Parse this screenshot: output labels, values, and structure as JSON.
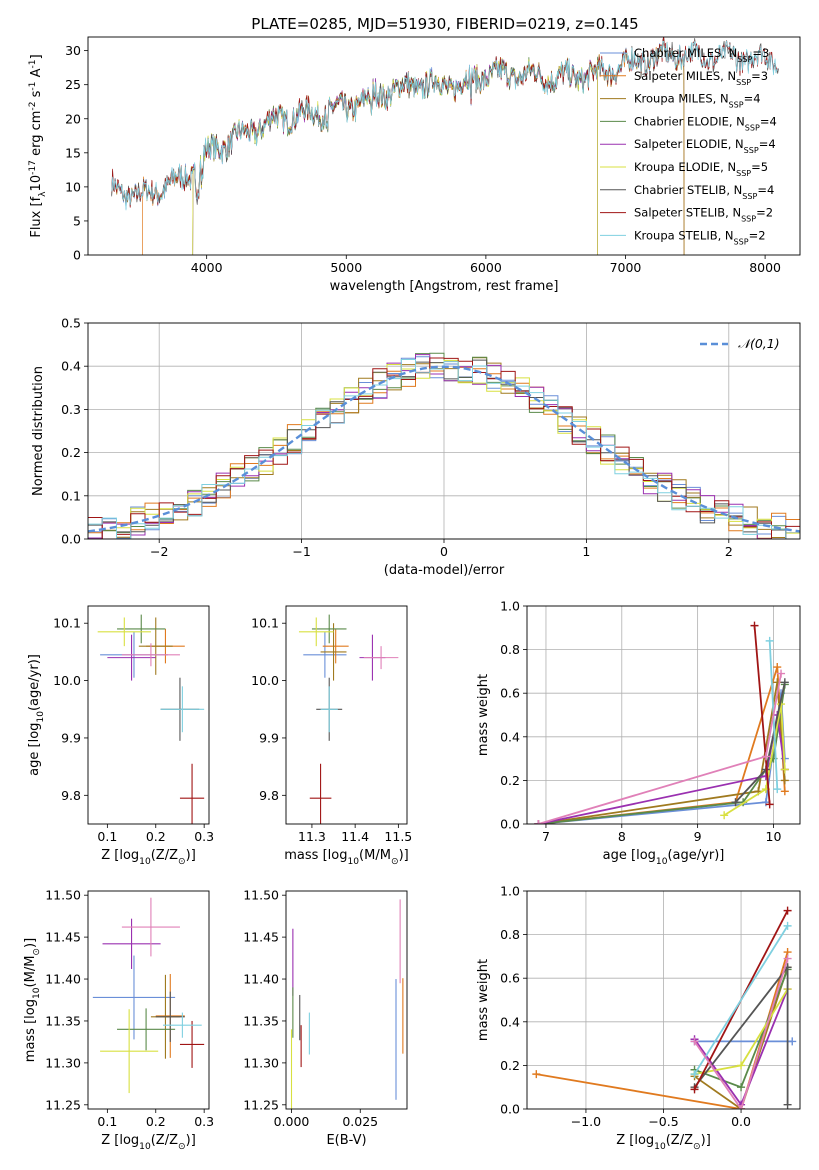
{
  "figure_title": "PLATE=0285, MJD=51930, FIBERID=0219, z=0.145",
  "colors": {
    "Chabrier MILES": "#6a8fd8",
    "Salpeter MILES": "#e07a1f",
    "Kroupa MILES": "#a07a1f",
    "Chabrier ELODIE": "#5a8a4a",
    "Salpeter ELODIE": "#9a30b0",
    "Kroupa ELODIE": "#d8e040",
    "Chabrier STELIB": "#555555",
    "Salpeter STELIB": "#a01515",
    "Kroupa STELIB": "#7fd0e0",
    "extra_pink": "#e080b8",
    "normal": "#5a8fd8"
  },
  "chart_data": [
    {
      "id": "spectrum",
      "type": "line",
      "title": "PLATE=0285, MJD=51930, FIBERID=0219, z=0.145",
      "xlabel": "wavelength [Angstrom, rest frame]",
      "ylabel": "Flux [f$_\\lambda$10$^{-17}$ erg cm$^{-2}$ s$^{-1}$ A$^{-1}$]",
      "xlim": [
        3150,
        8250
      ],
      "ylim": [
        0,
        32
      ],
      "xticks": [
        4000,
        5000,
        6000,
        7000,
        8000
      ],
      "yticks": [
        0,
        5,
        10,
        15,
        20,
        25,
        30
      ],
      "grid": false,
      "legend": "top-right",
      "continuum": [
        [
          3320,
          10
        ],
        [
          3500,
          8.5
        ],
        [
          3700,
          10
        ],
        [
          3900,
          12
        ],
        [
          4000,
          15
        ],
        [
          4200,
          17
        ],
        [
          4500,
          20
        ],
        [
          4800,
          21
        ],
        [
          5000,
          21.5
        ],
        [
          5200,
          23.5
        ],
        [
          5500,
          25
        ],
        [
          5800,
          25
        ],
        [
          6000,
          26.5
        ],
        [
          6300,
          26.5
        ],
        [
          6500,
          26
        ],
        [
          6800,
          26.5
        ],
        [
          7000,
          28
        ],
        [
          7200,
          29
        ],
        [
          7400,
          29.5
        ],
        [
          7700,
          29
        ],
        [
          8000,
          29
        ],
        [
          8100,
          28.5
        ]
      ],
      "series": [
        {
          "name": "Chabrier MILES, N$_{SSP}$=3",
          "xmin": 3320,
          "xmax": 7420
        },
        {
          "name": "Salpeter MILES, N$_{SSP}$=3",
          "xmin": 3540,
          "xmax": 7420
        },
        {
          "name": "Kroupa MILES, N$_{SSP}$=4",
          "xmin": 3320,
          "xmax": 7420
        },
        {
          "name": "Chabrier ELODIE, N$_{SSP}$=4",
          "xmin": 3900,
          "xmax": 6800
        },
        {
          "name": "Salpeter ELODIE, N$_{SSP}$=4",
          "xmin": 3900,
          "xmax": 6800
        },
        {
          "name": "Kroupa ELODIE, N$_{SSP}$=5",
          "xmin": 3900,
          "xmax": 6800
        },
        {
          "name": "Chabrier STELIB, N$_{SSP}$=4",
          "xmin": 3320,
          "xmax": 8100
        },
        {
          "name": "Salpeter STELIB, N$_{SSP}$=2",
          "xmin": 3320,
          "xmax": 8100
        },
        {
          "name": "Kroupa STELIB, N$_{SSP}$=2",
          "xmin": 3320,
          "xmax": 8100
        }
      ]
    },
    {
      "id": "residuals",
      "type": "line",
      "xlabel": "(data-model)/error",
      "ylabel": "Normed distribution",
      "xlim": [
        -2.5,
        2.5
      ],
      "ylim": [
        0,
        0.5
      ],
      "xticks": [
        -2,
        -1,
        0,
        1,
        2
      ],
      "yticks": [
        0.0,
        0.1,
        0.2,
        0.3,
        0.4,
        0.5
      ],
      "grid": true,
      "legend": "top-right",
      "normal_label": "$\\mathcal{N}(0,1)$"
    },
    {
      "id": "age_vs_Z",
      "type": "scatter",
      "xlabel": "Z [log$_{10}$(Z/Z$_\\odot$)]",
      "ylabel": "age  [log$_{10}$(age/yr)]",
      "xlim": [
        0.06,
        0.31
      ],
      "ylim": [
        9.75,
        10.13
      ],
      "xticks": [
        0.1,
        0.2,
        0.3
      ],
      "yticks": [
        9.8,
        9.9,
        10.0,
        10.1
      ],
      "points": [
        {
          "model": "Chabrier MILES",
          "x": 0.155,
          "y": 10.045,
          "xerr": 0.07,
          "yerr": 0.04
        },
        {
          "model": "Salpeter MILES",
          "x": 0.22,
          "y": 10.06,
          "xerr": 0.04,
          "yerr": 0.03
        },
        {
          "model": "Kroupa MILES",
          "x": 0.2,
          "y": 10.06,
          "xerr": 0.035,
          "yerr": 0.05
        },
        {
          "model": "Chabrier ELODIE",
          "x": 0.17,
          "y": 10.09,
          "xerr": 0.05,
          "yerr": 0.025
        },
        {
          "model": "Salpeter ELODIE",
          "x": 0.15,
          "y": 10.04,
          "xerr": 0.05,
          "yerr": 0.04
        },
        {
          "model": "Kroupa ELODIE",
          "x": 0.135,
          "y": 10.085,
          "xerr": 0.055,
          "yerr": 0.025
        },
        {
          "model": "Chabrier STELIB",
          "x": 0.25,
          "y": 9.95,
          "xerr": 0.04,
          "yerr": 0.055
        },
        {
          "model": "Salpeter STELIB",
          "x": 0.275,
          "y": 9.795,
          "xerr": 0.025,
          "yerr": 0.06
        },
        {
          "model": "Kroupa STELIB",
          "x": 0.255,
          "y": 9.95,
          "xerr": 0.045,
          "yerr": 0.04
        },
        {
          "model": "extra_pink",
          "x": 0.19,
          "y": 10.045,
          "xerr": 0.06,
          "yerr": 0.02
        }
      ]
    },
    {
      "id": "age_vs_mass",
      "type": "scatter",
      "xlabel": "mass [log$_{10}$(M/M$_\\odot$)]",
      "ylabel": "",
      "xlim": [
        11.24,
        11.52
      ],
      "ylim": [
        9.75,
        10.13
      ],
      "xticks": [
        11.3,
        11.4,
        11.5
      ],
      "yticks": [
        9.8,
        9.9,
        10.0,
        10.1
      ],
      "points": [
        {
          "model": "Chabrier MILES",
          "x": 11.33,
          "y": 10.045,
          "xerr": 0.05,
          "yerr": 0.04
        },
        {
          "model": "Salpeter MILES",
          "x": 11.355,
          "y": 10.06,
          "xerr": 0.03,
          "yerr": 0.03
        },
        {
          "model": "Kroupa MILES",
          "x": 11.35,
          "y": 10.05,
          "xerr": 0.03,
          "yerr": 0.05
        },
        {
          "model": "Chabrier ELODIE",
          "x": 11.34,
          "y": 10.09,
          "xerr": 0.04,
          "yerr": 0.025
        },
        {
          "model": "Salpeter ELODIE",
          "x": 11.44,
          "y": 10.04,
          "xerr": 0.03,
          "yerr": 0.04
        },
        {
          "model": "Kroupa ELODIE",
          "x": 11.31,
          "y": 10.085,
          "xerr": 0.04,
          "yerr": 0.025
        },
        {
          "model": "Chabrier STELIB",
          "x": 11.34,
          "y": 9.95,
          "xerr": 0.03,
          "yerr": 0.055
        },
        {
          "model": "Salpeter STELIB",
          "x": 11.32,
          "y": 9.795,
          "xerr": 0.025,
          "yerr": 0.06
        },
        {
          "model": "Kroupa STELIB",
          "x": 11.34,
          "y": 9.95,
          "xerr": 0.02,
          "yerr": 0.04
        },
        {
          "model": "extra_pink",
          "x": 11.46,
          "y": 10.04,
          "xerr": 0.04,
          "yerr": 0.02
        }
      ]
    },
    {
      "id": "weight_vs_age",
      "type": "line",
      "xlabel": "age  [log$_{10}$(age/yr)]",
      "ylabel": "mass weight",
      "xlim": [
        6.75,
        10.35
      ],
      "ylim": [
        0,
        1
      ],
      "xticks": [
        7,
        8,
        9,
        10
      ],
      "yticks": [
        0.0,
        0.2,
        0.4,
        0.6,
        0.8,
        1.0
      ],
      "grid": true,
      "series": [
        {
          "model": "Chabrier MILES",
          "points": [
            [
              6.9,
              0.0
            ],
            [
              9.9,
              0.1
            ],
            [
              10.1,
              0.6
            ],
            [
              10.15,
              0.3
            ]
          ]
        },
        {
          "model": "Salpeter MILES",
          "points": [
            [
              6.9,
              0.0
            ],
            [
              9.5,
              0.1
            ],
            [
              10.05,
              0.72
            ],
            [
              10.15,
              0.15
            ]
          ]
        },
        {
          "model": "Kroupa MILES",
          "points": [
            [
              6.9,
              0.0
            ],
            [
              9.8,
              0.15
            ],
            [
              10.05,
              0.65
            ],
            [
              10.15,
              0.2
            ]
          ]
        },
        {
          "model": "Chabrier ELODIE",
          "points": [
            [
              6.9,
              0.0
            ],
            [
              9.6,
              0.1
            ],
            [
              10.0,
              0.3
            ],
            [
              10.15,
              0.64
            ]
          ]
        },
        {
          "model": "Salpeter ELODIE",
          "points": [
            [
              6.9,
              0.0
            ],
            [
              9.9,
              0.22
            ],
            [
              10.05,
              0.5
            ],
            [
              10.15,
              0.25
            ]
          ]
        },
        {
          "model": "Kroupa ELODIE",
          "points": [
            [
              9.35,
              0.04
            ],
            [
              9.9,
              0.16
            ],
            [
              10.1,
              0.55
            ],
            [
              10.15,
              0.25
            ]
          ]
        },
        {
          "model": "Chabrier STELIB",
          "points": [
            [
              9.5,
              0.1
            ],
            [
              9.9,
              0.25
            ],
            [
              10.15,
              0.65
            ]
          ]
        },
        {
          "model": "Salpeter STELIB",
          "points": [
            [
              9.75,
              0.91
            ],
            [
              9.95,
              0.09
            ]
          ]
        },
        {
          "model": "Kroupa STELIB",
          "points": [
            [
              9.95,
              0.84
            ],
            [
              10.05,
              0.16
            ]
          ]
        },
        {
          "model": "extra_pink",
          "points": [
            [
              6.9,
              0.0
            ],
            [
              9.9,
              0.31
            ],
            [
              10.1,
              0.69
            ]
          ]
        }
      ]
    },
    {
      "id": "mass_vs_Z",
      "type": "scatter",
      "xlabel": "Z [log$_{10}$(Z/Z$_\\odot$)]",
      "ylabel": "mass [log$_{10}$(M/M$_\\odot$)]",
      "xlim": [
        0.06,
        0.31
      ],
      "ylim": [
        11.245,
        11.505
      ],
      "xticks": [
        0.1,
        0.2,
        0.3
      ],
      "yticks": [
        11.25,
        11.3,
        11.35,
        11.4,
        11.45,
        11.5
      ],
      "points": [
        {
          "model": "Chabrier MILES",
          "x": 0.155,
          "y": 11.378,
          "xerr": 0.085,
          "yerr": 0.05
        },
        {
          "model": "Salpeter MILES",
          "x": 0.23,
          "y": 11.356,
          "xerr": 0.03,
          "yerr": 0.05
        },
        {
          "model": "Kroupa MILES",
          "x": 0.22,
          "y": 11.355,
          "xerr": 0.03,
          "yerr": 0.05
        },
        {
          "model": "Chabrier ELODIE",
          "x": 0.18,
          "y": 11.34,
          "xerr": 0.06,
          "yerr": 0.025
        },
        {
          "model": "Salpeter ELODIE",
          "x": 0.15,
          "y": 11.442,
          "xerr": 0.06,
          "yerr": 0.03
        },
        {
          "model": "Kroupa ELODIE",
          "x": 0.145,
          "y": 11.314,
          "xerr": 0.06,
          "yerr": 0.05
        },
        {
          "model": "Chabrier STELIB",
          "x": 0.23,
          "y": 11.355,
          "xerr": 0.03,
          "yerr": 0.03
        },
        {
          "model": "Salpeter STELIB",
          "x": 0.275,
          "y": 11.322,
          "xerr": 0.025,
          "yerr": 0.028
        },
        {
          "model": "Kroupa STELIB",
          "x": 0.255,
          "y": 11.345,
          "xerr": 0.04,
          "yerr": 0.015
        },
        {
          "model": "extra_pink",
          "x": 0.19,
          "y": 11.462,
          "xerr": 0.06,
          "yerr": 0.035
        }
      ]
    },
    {
      "id": "mass_vs_EBV",
      "type": "scatter",
      "xlabel": "E(B-V)",
      "ylabel": "",
      "xlim": [
        -0.002,
        0.042
      ],
      "ylim": [
        11.245,
        11.505
      ],
      "xticks": [
        0.0,
        0.025
      ],
      "xticklabels": [
        "0.000",
        "0.025"
      ],
      "yticks": [
        11.25,
        11.3,
        11.35,
        11.4,
        11.45,
        11.5
      ],
      "points": [
        {
          "model": "Chabrier MILES",
          "x": 0.038,
          "y": 11.328,
          "xerr": 0,
          "yerr": 0.072
        },
        {
          "model": "Salpeter MILES",
          "x": 0.0405,
          "y": 11.356,
          "xerr": 0,
          "yerr": 0.045
        },
        {
          "model": "Salpeter ELODIE",
          "x": 0.0005,
          "y": 11.42,
          "xerr": 0,
          "yerr": 0.04
        },
        {
          "model": "Kroupa ELODIE",
          "x": 0.0,
          "y": 11.29,
          "xerr": 0,
          "yerr": 0.05
        },
        {
          "model": "Chabrier STELIB",
          "x": 0.003,
          "y": 11.354,
          "xerr": 0,
          "yerr": 0.027
        },
        {
          "model": "Salpeter STELIB",
          "x": 0.0035,
          "y": 11.32,
          "xerr": 0,
          "yerr": 0.025
        },
        {
          "model": "Kroupa STELIB",
          "x": 0.0065,
          "y": 11.335,
          "xerr": 0,
          "yerr": 0.025
        },
        {
          "model": "Chabrier ELODIE",
          "x": 0.0005,
          "y": 11.36,
          "xerr": 0,
          "yerr": 0.03
        },
        {
          "model": "extra_pink",
          "x": 0.0395,
          "y": 11.445,
          "xerr": 0,
          "yerr": 0.05
        }
      ]
    },
    {
      "id": "weight_vs_Z",
      "type": "line",
      "xlabel": "Z [log$_{10}$(Z/Z$_\\odot$)]",
      "ylabel": "mass weight",
      "xlim": [
        -1.38,
        0.38
      ],
      "ylim": [
        0,
        1
      ],
      "xticks": [
        -1.0,
        -0.5,
        0.0
      ],
      "yticks": [
        0.0,
        0.2,
        0.4,
        0.6,
        0.8,
        1.0
      ],
      "grid": true,
      "series": [
        {
          "model": "Chabrier MILES",
          "points": [
            [
              -0.3,
              0.31
            ],
            [
              0.33,
              0.31
            ]
          ]
        },
        {
          "model": "Salpeter MILES",
          "points": [
            [
              -1.32,
              0.16
            ],
            [
              0.0,
              0.0
            ],
            [
              0.3,
              0.72
            ]
          ]
        },
        {
          "model": "Kroupa MILES",
          "points": [
            [
              -0.3,
              0.15
            ],
            [
              0.0,
              0.0
            ],
            [
              0.3,
              0.65
            ]
          ]
        },
        {
          "model": "Chabrier ELODIE",
          "points": [
            [
              -0.3,
              0.18
            ],
            [
              0.0,
              0.1
            ],
            [
              0.3,
              0.64
            ]
          ]
        },
        {
          "model": "Salpeter ELODIE",
          "points": [
            [
              -0.3,
              0.32
            ],
            [
              0.0,
              0.02
            ],
            [
              0.3,
              0.55
            ]
          ]
        },
        {
          "model": "Kroupa ELODIE",
          "points": [
            [
              -0.3,
              0.16
            ],
            [
              0.0,
              0.2
            ],
            [
              0.3,
              0.55
            ]
          ]
        },
        {
          "model": "Chabrier STELIB",
          "points": [
            [
              -0.3,
              0.1
            ],
            [
              0.3,
              0.65
            ],
            [
              0.3,
              0.02
            ]
          ]
        },
        {
          "model": "Salpeter STELIB",
          "points": [
            [
              -0.3,
              0.09
            ],
            [
              0.3,
              0.91
            ]
          ]
        },
        {
          "model": "Kroupa STELIB",
          "points": [
            [
              -0.3,
              0.16
            ],
            [
              0.3,
              0.84
            ]
          ]
        },
        {
          "model": "extra_pink",
          "points": [
            [
              -0.3,
              0.31
            ],
            [
              0.0,
              0.0
            ],
            [
              0.3,
              0.69
            ]
          ]
        }
      ]
    }
  ]
}
